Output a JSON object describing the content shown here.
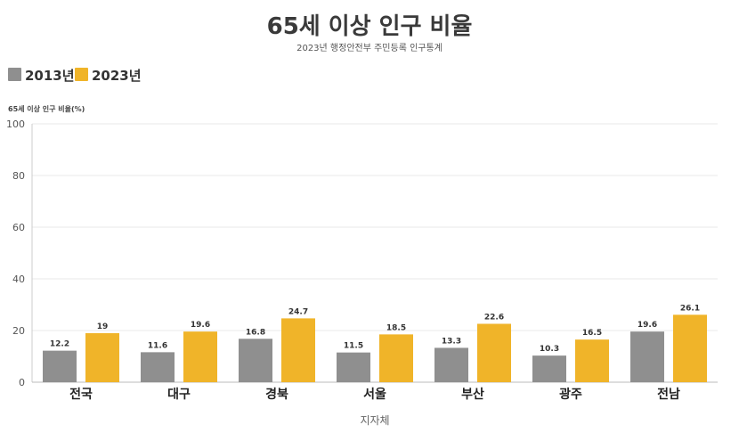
{
  "chart_data": {
    "type": "bar",
    "title": "65세 이상 인구 비율",
    "subtitle": "2023년 행정안전부 주민등록 인구통계",
    "ylabel": "65세 이상 인구 비율(%)",
    "xlabel": "지자체",
    "ylim": [
      0,
      100
    ],
    "yticks": [
      0,
      20,
      40,
      60,
      80,
      100
    ],
    "grid": true,
    "legend_position": "top-left",
    "categories": [
      "전국",
      "대구",
      "경북",
      "서울",
      "부산",
      "광주",
      "전남"
    ],
    "series": [
      {
        "name": "2013년",
        "color": "#8f8f8f",
        "values": [
          12.2,
          11.6,
          16.8,
          11.5,
          13.3,
          10.3,
          19.6
        ]
      },
      {
        "name": "2023년",
        "color": "#f0b429",
        "values": [
          19,
          19.6,
          24.7,
          18.5,
          22.6,
          16.5,
          26.1
        ]
      }
    ]
  }
}
